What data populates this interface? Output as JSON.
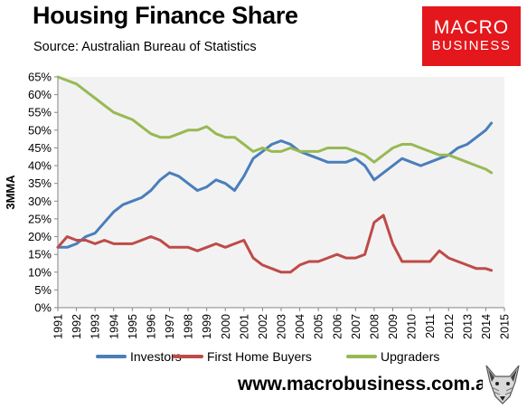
{
  "header": {
    "title": "Housing Finance Share",
    "subtitle": "Source: Australian Bureau of Statistics"
  },
  "logo": {
    "line1": "MACRO",
    "line2": "BUSINESS",
    "icon": "fox-icon"
  },
  "footer": {
    "website": "www.macrobusiness.com.au"
  },
  "colors": {
    "investors": "#4a7ebb",
    "first_home_buyers": "#be4b48",
    "upgraders": "#98b954",
    "plot_background": "#f2f2f2",
    "brand_red": "#e4171c"
  },
  "chart_data": {
    "type": "line",
    "title": "Housing Finance Share",
    "subtitle": "Source: Australian Bureau of Statistics",
    "ylabel": "3MMA",
    "xlabel": "",
    "xlim": [
      1991,
      2015
    ],
    "ylim": [
      0,
      0.65
    ],
    "x_ticks": [
      "1991",
      "1992",
      "1993",
      "1994",
      "1995",
      "1996",
      "1997",
      "1998",
      "1999",
      "2000",
      "2001",
      "2002",
      "2003",
      "2004",
      "2005",
      "2006",
      "2007",
      "2008",
      "2009",
      "2010",
      "2011",
      "2012",
      "2013",
      "2014",
      "2015"
    ],
    "y_ticks": [
      "0%",
      "5%",
      "10%",
      "15%",
      "20%",
      "25%",
      "30%",
      "35%",
      "40%",
      "45%",
      "50%",
      "55%",
      "60%",
      "65%"
    ],
    "grid": false,
    "legend": "bottom",
    "x": [
      1991.0,
      1991.5,
      1992.0,
      1992.5,
      1993.0,
      1993.5,
      1994.0,
      1994.5,
      1995.0,
      1995.5,
      1996.0,
      1996.5,
      1997.0,
      1997.5,
      1998.0,
      1998.5,
      1999.0,
      1999.5,
      2000.0,
      2000.5,
      2001.0,
      2001.5,
      2002.0,
      2002.5,
      2003.0,
      2003.5,
      2004.0,
      2004.5,
      2005.0,
      2005.5,
      2006.0,
      2006.5,
      2007.0,
      2007.5,
      2008.0,
      2008.5,
      2009.0,
      2009.5,
      2010.0,
      2010.5,
      2011.0,
      2011.5,
      2012.0,
      2012.5,
      2013.0,
      2013.5,
      2014.0,
      2014.3
    ],
    "series": [
      {
        "name": "Investors",
        "values": [
          0.17,
          0.17,
          0.18,
          0.2,
          0.21,
          0.24,
          0.27,
          0.29,
          0.3,
          0.31,
          0.33,
          0.36,
          0.38,
          0.37,
          0.35,
          0.33,
          0.34,
          0.36,
          0.35,
          0.33,
          0.37,
          0.42,
          0.44,
          0.46,
          0.47,
          0.46,
          0.44,
          0.43,
          0.42,
          0.41,
          0.41,
          0.41,
          0.42,
          0.4,
          0.36,
          0.38,
          0.4,
          0.42,
          0.41,
          0.4,
          0.41,
          0.42,
          0.43,
          0.45,
          0.46,
          0.48,
          0.5,
          0.52
        ]
      },
      {
        "name": "First Home Buyers",
        "values": [
          0.17,
          0.2,
          0.19,
          0.19,
          0.18,
          0.19,
          0.18,
          0.18,
          0.18,
          0.19,
          0.2,
          0.19,
          0.17,
          0.17,
          0.17,
          0.16,
          0.17,
          0.18,
          0.17,
          0.18,
          0.19,
          0.14,
          0.12,
          0.11,
          0.1,
          0.1,
          0.12,
          0.13,
          0.13,
          0.14,
          0.15,
          0.14,
          0.14,
          0.15,
          0.24,
          0.26,
          0.18,
          0.13,
          0.13,
          0.13,
          0.13,
          0.16,
          0.14,
          0.13,
          0.12,
          0.11,
          0.11,
          0.105
        ]
      },
      {
        "name": "Upgraders",
        "values": [
          0.65,
          0.64,
          0.63,
          0.61,
          0.59,
          0.57,
          0.55,
          0.54,
          0.53,
          0.51,
          0.49,
          0.48,
          0.48,
          0.49,
          0.5,
          0.5,
          0.51,
          0.49,
          0.48,
          0.48,
          0.46,
          0.44,
          0.45,
          0.44,
          0.44,
          0.45,
          0.44,
          0.44,
          0.44,
          0.45,
          0.45,
          0.45,
          0.44,
          0.43,
          0.41,
          0.43,
          0.45,
          0.46,
          0.46,
          0.45,
          0.44,
          0.43,
          0.43,
          0.42,
          0.41,
          0.4,
          0.39,
          0.38
        ]
      }
    ]
  }
}
